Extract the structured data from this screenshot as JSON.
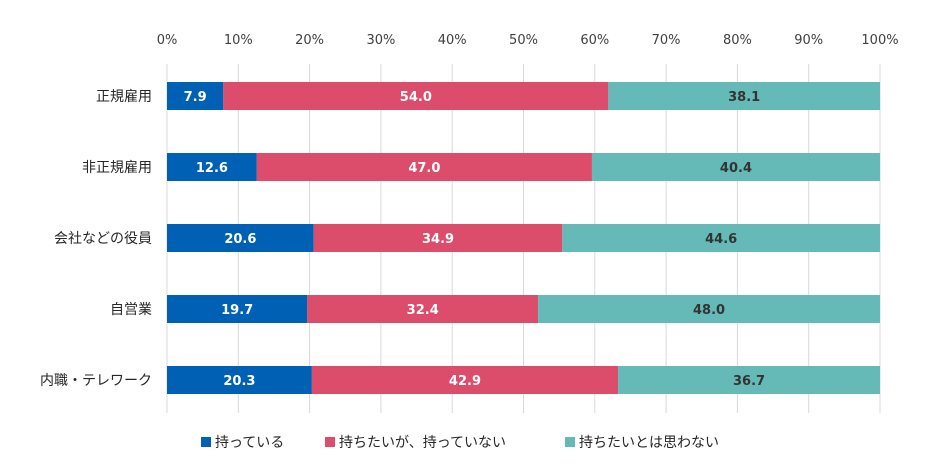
{
  "chart_data": {
    "type": "bar",
    "orientation": "horizontal",
    "stacked": true,
    "percent_stacked": true,
    "categories": [
      "正規雇用",
      "非正規雇用",
      "会社などの役員",
      "自営業",
      "内職・テレワーク"
    ],
    "series": [
      {
        "name": "持っている",
        "color": "#0061b4",
        "values": [
          7.9,
          12.6,
          20.6,
          19.7,
          20.3
        ]
      },
      {
        "name": "持ちたいが、持っていない",
        "color": "#dc4d6c",
        "values": [
          54.0,
          47.0,
          34.9,
          32.4,
          42.9
        ]
      },
      {
        "name": "持ちたいとは思わない",
        "color": "#65bab7",
        "values": [
          38.1,
          40.4,
          44.6,
          48.0,
          36.7
        ]
      }
    ],
    "xlim": [
      0,
      100
    ],
    "x_ticks": [
      "0%",
      "10%",
      "20%",
      "30%",
      "40%",
      "50%",
      "60%",
      "70%",
      "80%",
      "90%",
      "100%"
    ],
    "axis_position": "top",
    "grid": true,
    "legend_position": "bottom"
  }
}
